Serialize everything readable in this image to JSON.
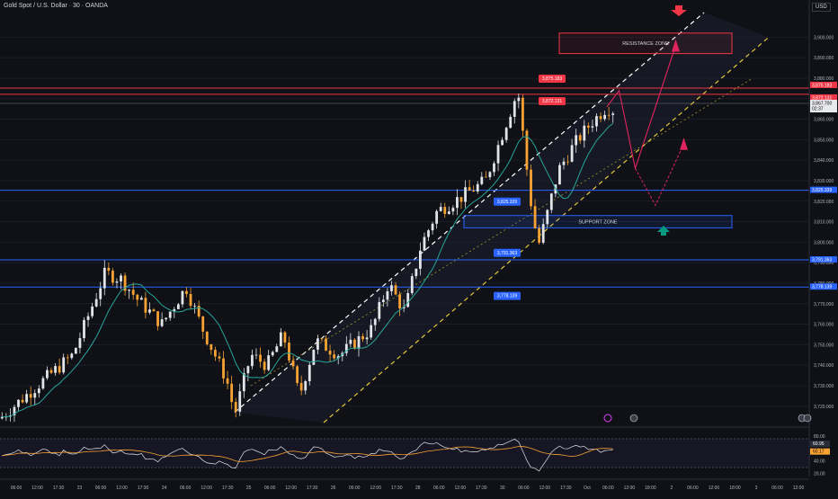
{
  "header": {
    "symbol_title": "Gold Spot / U.S. Dollar · 30 · OANDA",
    "currency_badge": "USD"
  },
  "chart_data": {
    "type": "candlestick",
    "title": "Gold Spot / U.S. Dollar · 30 · OANDA",
    "ylim": [
      3712,
      3912
    ],
    "y_ticks": [
      3720,
      3730,
      3740,
      3750,
      3760,
      3770,
      3780,
      3790,
      3800,
      3810,
      3820,
      3830,
      3840,
      3850,
      3860,
      3870,
      3880,
      3890,
      3900
    ],
    "y_tick_labels": [
      "3,720.000",
      "3,730.000",
      "3,740.000",
      "3,750.000",
      "3,760.000",
      "3,770.000",
      "3,780.000",
      "3,790.000",
      "3,800.000",
      "3,810.000",
      "3,820.000",
      "3,830.000",
      "3,840.000",
      "3,850.000",
      "3,860.000",
      "3,870.000",
      "3,880.000",
      "3,890.000",
      "3,900.000"
    ],
    "x_labels": [
      "06:00",
      "12:00",
      "17:30",
      "23",
      "06:00",
      "12:00",
      "17:30",
      "24",
      "06:00",
      "12:00",
      "17:30",
      "25",
      "06:00",
      "12:00",
      "17:30",
      "26",
      "06:00",
      "12:00",
      "17:30",
      "28",
      "06:00",
      "12:00",
      "17:30",
      "30",
      "06:00",
      "12:00",
      "17:30",
      "Oct",
      "06:00",
      "12:00",
      "18:00",
      "2",
      "06:00",
      "12:00",
      "18:00",
      "3",
      "06:00",
      "12:00"
    ],
    "price_path": [
      [
        0,
        3714
      ],
      [
        0.04,
        3728
      ],
      [
        0.09,
        3745
      ],
      [
        0.13,
        3785
      ],
      [
        0.15,
        3782
      ],
      [
        0.17,
        3772
      ],
      [
        0.2,
        3760
      ],
      [
        0.23,
        3778
      ],
      [
        0.25,
        3758
      ],
      [
        0.28,
        3733
      ],
      [
        0.29,
        3716
      ],
      [
        0.31,
        3745
      ],
      [
        0.33,
        3740
      ],
      [
        0.35,
        3755
      ],
      [
        0.37,
        3725
      ],
      [
        0.39,
        3752
      ],
      [
        0.42,
        3745
      ],
      [
        0.46,
        3758
      ],
      [
        0.48,
        3780
      ],
      [
        0.5,
        3766
      ],
      [
        0.52,
        3798
      ],
      [
        0.54,
        3815
      ],
      [
        0.57,
        3822
      ],
      [
        0.6,
        3830
      ],
      [
        0.62,
        3852
      ],
      [
        0.64,
        3874
      ],
      [
        0.655,
        3822
      ],
      [
        0.665,
        3798
      ],
      [
        0.675,
        3812
      ],
      [
        0.69,
        3835
      ],
      [
        0.71,
        3848
      ],
      [
        0.73,
        3858
      ],
      [
        0.75,
        3866
      ],
      [
        0.76,
        3864
      ]
    ],
    "horizontal_levels": [
      {
        "label": "3,875.183",
        "value": 3875.183,
        "color": "#f23645"
      },
      {
        "label": "3,872.131",
        "value": 3872.131,
        "color": "#f23645"
      },
      {
        "label": "3,825.339",
        "value": 3825.339,
        "color": "#2962ff"
      },
      {
        "label": "3,791.363",
        "value": 3791.363,
        "color": "#2962ff"
      },
      {
        "label": "3,778.139",
        "value": 3778.139,
        "color": "#2962ff"
      }
    ],
    "current_price": {
      "label": "3,867.700",
      "countdown": "02:37"
    },
    "zones": {
      "resistance": {
        "label": "RESISTANCE ZONE",
        "color": "#f23645"
      },
      "support": {
        "label": "SUPPORT ZONE",
        "color": "#2962ff"
      }
    },
    "rsi": {
      "y_tick_labels": [
        "80.00",
        "40.00",
        "20.00"
      ],
      "value_labels": [
        "60.95",
        "60.17"
      ]
    },
    "colors": {
      "bull_candle": "#e2e4e9",
      "bear_candle": "#f7a233",
      "moving_average": "#26a69a",
      "channel_upper": "#ffffff",
      "channel_lower": "#e5c83a",
      "projection": "#e0245e"
    }
  }
}
